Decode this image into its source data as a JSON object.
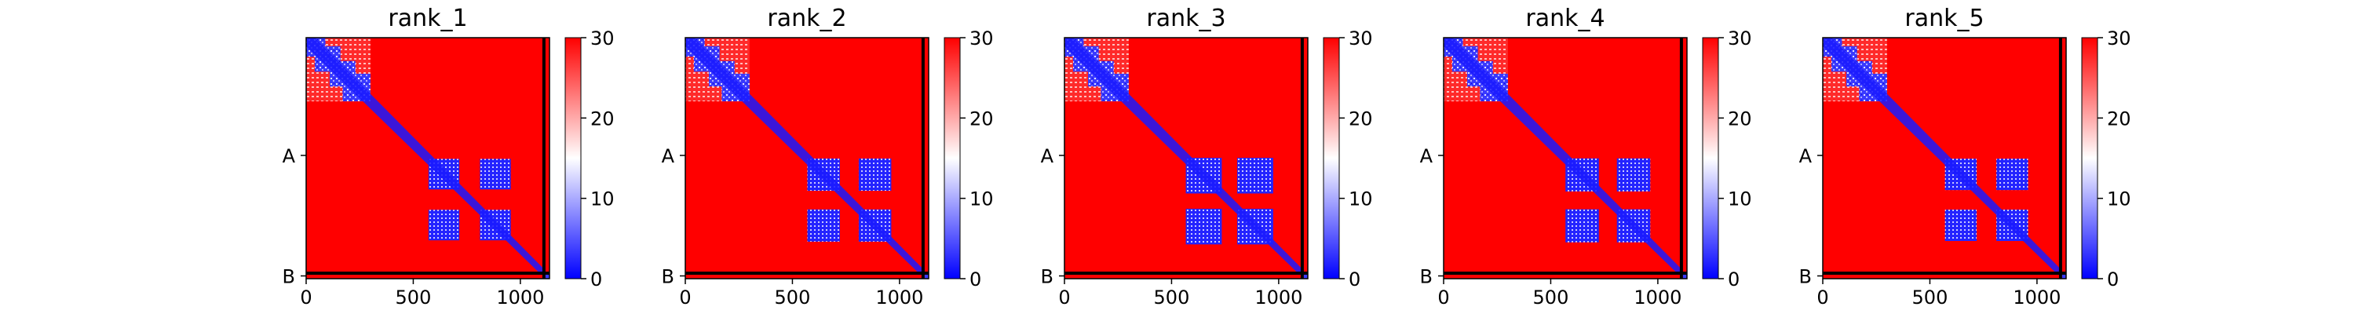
{
  "chart_data": {
    "type": "heatmap",
    "grid": false,
    "cmap": [
      "#0000ff",
      "#ffffff",
      "#ff0000"
    ],
    "panels": [
      {
        "title": "rank_1",
        "blocks": [
          {
            "rows": [
              0,
              300
            ],
            "cols": [
              0,
              300
            ]
          },
          {
            "rows": [
              300,
              1110
            ],
            "cols": [
              300,
              1110
            ]
          }
        ],
        "cluster_fill": 0.72
      },
      {
        "title": "rank_2",
        "blocks": [
          {
            "rows": [
              0,
              300
            ],
            "cols": [
              0,
              300
            ]
          },
          {
            "rows": [
              300,
              1110
            ],
            "cols": [
              300,
              1110
            ]
          }
        ],
        "cluster_fill": 0.76
      },
      {
        "title": "rank_3",
        "blocks": [
          {
            "rows": [
              0,
              300
            ],
            "cols": [
              0,
              300
            ]
          },
          {
            "rows": [
              300,
              1110
            ],
            "cols": [
              300,
              1110
            ]
          }
        ],
        "cluster_fill": 0.84
      },
      {
        "title": "rank_4",
        "blocks": [
          {
            "rows": [
              0,
              300
            ],
            "cols": [
              0,
              300
            ]
          },
          {
            "rows": [
              300,
              1110
            ],
            "cols": [
              300,
              1110
            ]
          }
        ],
        "cluster_fill": 0.78
      },
      {
        "title": "rank_5",
        "blocks": [
          {
            "rows": [
              0,
              300
            ],
            "cols": [
              0,
              300
            ]
          },
          {
            "rows": [
              300,
              1110
            ],
            "cols": [
              300,
              1110
            ]
          }
        ],
        "cluster_fill": 0.74
      }
    ],
    "matrix_size": 1136,
    "chain_boundary": 1110,
    "xlim": [
      0,
      1136
    ],
    "xticks": [
      0,
      500,
      1000
    ],
    "y_chain_labels": [
      {
        "label": "A",
        "value": 555
      },
      {
        "label": "B",
        "value": 1123
      }
    ],
    "colorbar": {
      "vmin": 0,
      "vmax": 30,
      "ticks": [
        0,
        10,
        20,
        30
      ]
    }
  }
}
